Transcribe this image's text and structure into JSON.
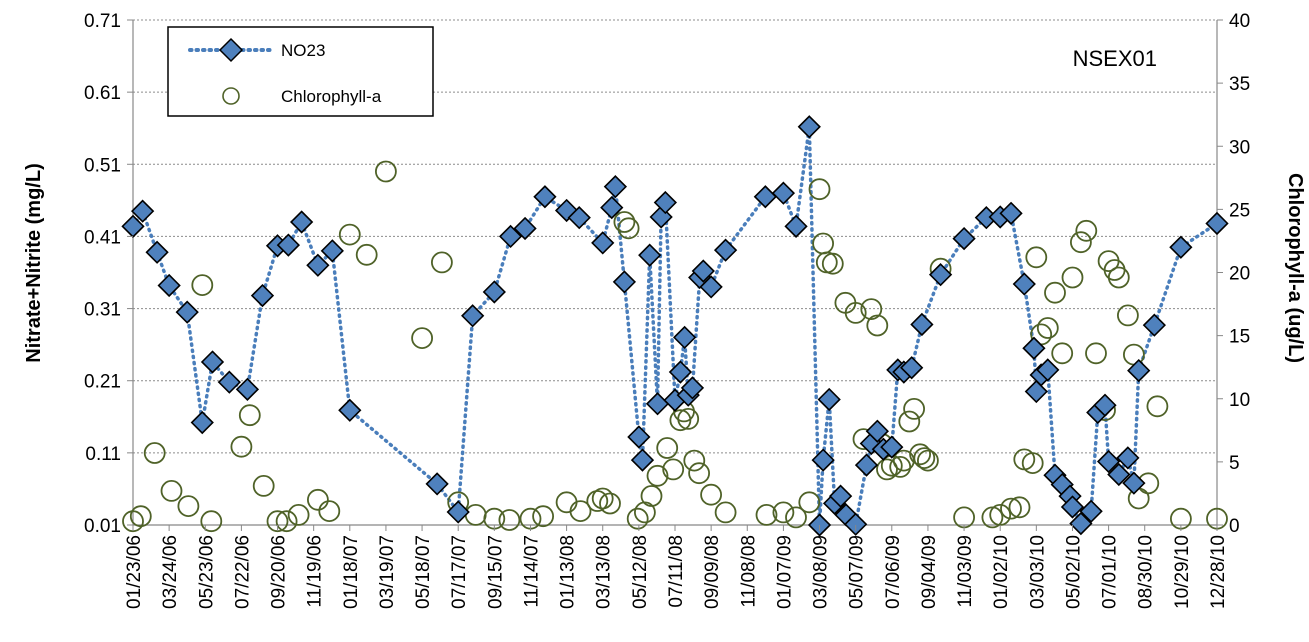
{
  "chart_data": {
    "type": "scatter",
    "annotation": "NSEX01",
    "ylabel_left": "Nitrate+Nitrite (mg/L)",
    "ylabel_right": "Chlorophyll-a (ug/L)",
    "x_ticks": [
      "01/23/06",
      "03/24/06",
      "05/23/06",
      "07/22/06",
      "09/20/06",
      "11/19/06",
      "01/18/07",
      "03/19/07",
      "05/18/07",
      "07/17/07",
      "09/15/07",
      "11/14/07",
      "01/13/08",
      "03/13/08",
      "05/12/08",
      "07/11/08",
      "09/09/08",
      "11/08/08",
      "01/07/09",
      "03/08/09",
      "05/07/09",
      "07/06/09",
      "09/04/09",
      "11/03/09",
      "01/02/10",
      "03/03/10",
      "05/02/10",
      "07/01/10",
      "08/30/10",
      "10/29/10",
      "12/28/10"
    ],
    "xlim": [
      "2006-01-23",
      "2010-12-28"
    ],
    "ylim_left": [
      0.01,
      0.71
    ],
    "ylim_right": [
      0,
      40
    ],
    "y_ticks_left": [
      "0.01",
      "0.11",
      "0.21",
      "0.31",
      "0.41",
      "0.51",
      "0.61",
      "0.71"
    ],
    "y_ticks_right": [
      "0",
      "5",
      "10",
      "15",
      "20",
      "25",
      "30",
      "35",
      "40"
    ],
    "grid": true,
    "legend_position": "top-left",
    "colors": {
      "no23": "#4F81BD",
      "no23_line": "#4A7EBB",
      "chl": "#4F6228"
    },
    "series": [
      {
        "name": "NO23",
        "axis": "left",
        "style": "dotted line with diamond markers",
        "points": [
          [
            "2006-01-23",
            0.424
          ],
          [
            "2006-02-08",
            0.445
          ],
          [
            "2006-03-04",
            0.388
          ],
          [
            "2006-03-24",
            0.342
          ],
          [
            "2006-04-23",
            0.305
          ],
          [
            "2006-05-18",
            0.152
          ],
          [
            "2006-06-04",
            0.236
          ],
          [
            "2006-07-02",
            0.208
          ],
          [
            "2006-08-01",
            0.198
          ],
          [
            "2006-08-26",
            0.328
          ],
          [
            "2006-09-20",
            0.397
          ],
          [
            "2006-10-08",
            0.398
          ],
          [
            "2006-10-30",
            0.43
          ],
          [
            "2006-11-26",
            0.37
          ],
          [
            "2006-12-20",
            0.39
          ],
          [
            "2007-01-18",
            0.169
          ],
          [
            "2007-06-12",
            0.067
          ],
          [
            "2007-07-17",
            0.028
          ],
          [
            "2007-08-10",
            0.3
          ],
          [
            "2007-09-15",
            0.333
          ],
          [
            "2007-10-12",
            0.41
          ],
          [
            "2007-11-05",
            0.421
          ],
          [
            "2007-12-08",
            0.465
          ],
          [
            "2008-01-13",
            0.446
          ],
          [
            "2008-02-03",
            0.436
          ],
          [
            "2008-03-13",
            0.401
          ],
          [
            "2008-03-28",
            0.45
          ],
          [
            "2008-04-03",
            0.479
          ],
          [
            "2008-04-18",
            0.347
          ],
          [
            "2008-05-12",
            0.132
          ],
          [
            "2008-05-18",
            0.1
          ],
          [
            "2008-05-30",
            0.384
          ],
          [
            "2008-06-12",
            0.178
          ],
          [
            "2008-06-18",
            0.437
          ],
          [
            "2008-06-25",
            0.457
          ],
          [
            "2008-07-11",
            0.183
          ],
          [
            "2008-07-20",
            0.222
          ],
          [
            "2008-07-27",
            0.27
          ],
          [
            "2008-08-02",
            0.19
          ],
          [
            "2008-08-09",
            0.2
          ],
          [
            "2008-08-21",
            0.353
          ],
          [
            "2008-08-27",
            0.362
          ],
          [
            "2008-09-09",
            0.34
          ],
          [
            "2008-10-03",
            0.391
          ],
          [
            "2008-12-08",
            0.465
          ],
          [
            "2009-01-07",
            0.47
          ],
          [
            "2009-01-28",
            0.424
          ],
          [
            "2009-02-19",
            0.562
          ],
          [
            "2009-03-08",
            0.01
          ],
          [
            "2009-03-14",
            0.1
          ],
          [
            "2009-03-24",
            0.184
          ],
          [
            "2009-04-02",
            0.04
          ],
          [
            "2009-04-12",
            0.05
          ],
          [
            "2009-04-21",
            0.024
          ],
          [
            "2009-05-07",
            0.011
          ],
          [
            "2009-05-25",
            0.093
          ],
          [
            "2009-06-02",
            0.123
          ],
          [
            "2009-06-12",
            0.14
          ],
          [
            "2009-06-22",
            0.115
          ],
          [
            "2009-07-06",
            0.118
          ],
          [
            "2009-07-16",
            0.225
          ],
          [
            "2009-07-26",
            0.222
          ],
          [
            "2009-08-08",
            0.228
          ],
          [
            "2009-08-25",
            0.288
          ],
          [
            "2009-09-25",
            0.357
          ],
          [
            "2009-11-03",
            0.407
          ],
          [
            "2009-12-10",
            0.436
          ],
          [
            "2010-01-02",
            0.437
          ],
          [
            "2010-01-20",
            0.442
          ],
          [
            "2010-02-11",
            0.344
          ],
          [
            "2010-02-27",
            0.255
          ],
          [
            "2010-03-03",
            0.195
          ],
          [
            "2010-03-11",
            0.218
          ],
          [
            "2010-03-22",
            0.225
          ],
          [
            "2010-04-03",
            0.079
          ],
          [
            "2010-04-15",
            0.066
          ],
          [
            "2010-04-28",
            0.05
          ],
          [
            "2010-05-02",
            0.035
          ],
          [
            "2010-05-16",
            0.012
          ],
          [
            "2010-06-02",
            0.029
          ],
          [
            "2010-06-13",
            0.166
          ],
          [
            "2010-06-25",
            0.176
          ],
          [
            "2010-07-01",
            0.098
          ],
          [
            "2010-07-18",
            0.08
          ],
          [
            "2010-08-02",
            0.103
          ],
          [
            "2010-08-12",
            0.068
          ],
          [
            "2010-08-20",
            0.224
          ],
          [
            "2010-09-15",
            0.287
          ],
          [
            "2010-10-29",
            0.395
          ],
          [
            "2010-12-28",
            0.428
          ]
        ]
      },
      {
        "name": "Chlorophyll-a",
        "axis": "right",
        "style": "open circle markers",
        "points": [
          [
            "2006-01-23",
            0.3
          ],
          [
            "2006-02-05",
            0.7
          ],
          [
            "2006-02-28",
            5.7
          ],
          [
            "2006-03-28",
            2.7
          ],
          [
            "2006-04-25",
            1.5
          ],
          [
            "2006-05-18",
            19.0
          ],
          [
            "2006-06-02",
            0.3
          ],
          [
            "2006-07-22",
            6.2
          ],
          [
            "2006-08-05",
            8.7
          ],
          [
            "2006-08-28",
            3.1
          ],
          [
            "2006-09-20",
            0.3
          ],
          [
            "2006-10-05",
            0.3
          ],
          [
            "2006-10-25",
            0.8
          ],
          [
            "2006-11-26",
            2.0
          ],
          [
            "2006-12-15",
            1.1
          ],
          [
            "2007-01-18",
            23.0
          ],
          [
            "2007-02-15",
            21.4
          ],
          [
            "2007-03-19",
            28.0
          ],
          [
            "2007-05-18",
            14.8
          ],
          [
            "2007-06-20",
            20.8
          ],
          [
            "2007-07-17",
            1.8
          ],
          [
            "2007-08-15",
            0.8
          ],
          [
            "2007-09-15",
            0.5
          ],
          [
            "2007-10-10",
            0.4
          ],
          [
            "2007-11-14",
            0.5
          ],
          [
            "2007-12-05",
            0.7
          ],
          [
            "2008-01-13",
            1.8
          ],
          [
            "2008-02-05",
            1.1
          ],
          [
            "2008-03-04",
            1.9
          ],
          [
            "2008-03-13",
            2.1
          ],
          [
            "2008-03-25",
            1.7
          ],
          [
            "2008-04-18",
            24.0
          ],
          [
            "2008-04-25",
            23.5
          ],
          [
            "2008-05-10",
            0.5
          ],
          [
            "2008-05-22",
            1.0
          ],
          [
            "2008-06-02",
            2.3
          ],
          [
            "2008-06-12",
            3.9
          ],
          [
            "2008-06-28",
            6.1
          ],
          [
            "2008-07-08",
            4.4
          ],
          [
            "2008-07-20",
            8.3
          ],
          [
            "2008-07-26",
            9.0
          ],
          [
            "2008-08-02",
            8.4
          ],
          [
            "2008-08-12",
            5.1
          ],
          [
            "2008-08-20",
            4.1
          ],
          [
            "2008-09-09",
            2.4
          ],
          [
            "2008-10-03",
            1.0
          ],
          [
            "2008-12-10",
            0.8
          ],
          [
            "2009-01-07",
            1.0
          ],
          [
            "2009-01-28",
            0.6
          ],
          [
            "2009-02-19",
            1.8
          ],
          [
            "2009-03-08",
            26.6
          ],
          [
            "2009-03-14",
            22.3
          ],
          [
            "2009-03-20",
            20.8
          ],
          [
            "2009-03-30",
            20.7
          ],
          [
            "2009-04-20",
            17.6
          ],
          [
            "2009-05-07",
            16.8
          ],
          [
            "2009-05-20",
            6.8
          ],
          [
            "2009-06-02",
            17.1
          ],
          [
            "2009-06-12",
            15.8
          ],
          [
            "2009-06-20",
            6.4
          ],
          [
            "2009-06-28",
            4.4
          ],
          [
            "2009-07-06",
            4.7
          ],
          [
            "2009-07-20",
            4.6
          ],
          [
            "2009-07-26",
            5.1
          ],
          [
            "2009-08-04",
            8.2
          ],
          [
            "2009-08-12",
            9.2
          ],
          [
            "2009-08-22",
            5.6
          ],
          [
            "2009-08-29",
            5.3
          ],
          [
            "2009-09-04",
            5.1
          ],
          [
            "2009-09-25",
            20.3
          ],
          [
            "2009-11-03",
            0.6
          ],
          [
            "2009-12-20",
            0.6
          ],
          [
            "2010-01-02",
            0.8
          ],
          [
            "2010-01-20",
            1.3
          ],
          [
            "2010-02-03",
            1.4
          ],
          [
            "2010-02-11",
            5.2
          ],
          [
            "2010-02-25",
            4.9
          ],
          [
            "2010-03-03",
            21.2
          ],
          [
            "2010-03-11",
            15.1
          ],
          [
            "2010-03-22",
            15.6
          ],
          [
            "2010-04-03",
            18.4
          ],
          [
            "2010-04-15",
            13.6
          ],
          [
            "2010-05-02",
            19.6
          ],
          [
            "2010-05-16",
            22.4
          ],
          [
            "2010-05-25",
            23.3
          ],
          [
            "2010-06-10",
            13.6
          ],
          [
            "2010-06-25",
            9.1
          ],
          [
            "2010-07-01",
            20.9
          ],
          [
            "2010-07-11",
            20.2
          ],
          [
            "2010-07-18",
            19.6
          ],
          [
            "2010-08-02",
            16.6
          ],
          [
            "2010-08-12",
            13.5
          ],
          [
            "2010-08-20",
            2.1
          ],
          [
            "2010-09-05",
            3.3
          ],
          [
            "2010-09-20",
            9.4
          ],
          [
            "2010-10-29",
            0.5
          ],
          [
            "2010-12-28",
            0.5
          ]
        ]
      }
    ]
  }
}
